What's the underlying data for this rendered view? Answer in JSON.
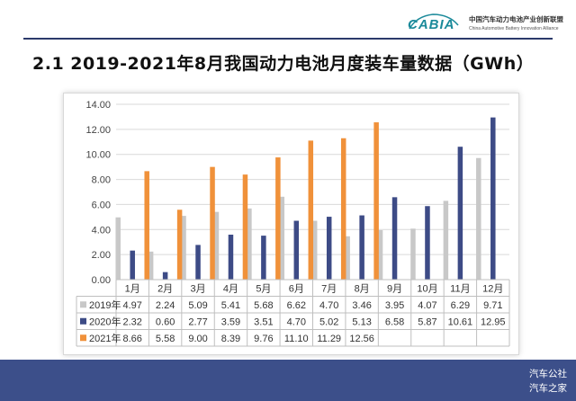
{
  "header": {
    "logo_text": "CABIA",
    "org_cn": "中国汽车动力电池产业创新联盟",
    "org_en": "China Automotive Battery Innovation Alliance"
  },
  "title": "2.1 2019-2021年8月我国动力电池月度装车量数据（GWh）",
  "watermark": {
    "line1": "汽车公社",
    "line2": "汽车之家"
  },
  "colors": {
    "footer": "#3c4f8a",
    "series": [
      "#c8c8c8",
      "#3d4b86",
      "#f0913a"
    ]
  },
  "chart_data": {
    "type": "bar",
    "categories": [
      "1月",
      "2月",
      "3月",
      "4月",
      "5月",
      "6月",
      "7月",
      "8月",
      "9月",
      "10月",
      "11月",
      "12月"
    ],
    "series": [
      {
        "name": "2019年",
        "values": [
          4.97,
          2.24,
          5.09,
          5.41,
          5.68,
          6.62,
          4.7,
          3.46,
          3.95,
          4.07,
          6.29,
          9.71
        ],
        "labels": [
          "4.97",
          "2.24",
          "5.09",
          "5.41",
          "5.68",
          "6.62",
          "4.70",
          "3.46",
          "3.95",
          "4.07",
          "6.29",
          "9.71"
        ]
      },
      {
        "name": "2020年",
        "values": [
          2.32,
          0.6,
          2.77,
          3.59,
          3.51,
          4.7,
          5.02,
          5.13,
          6.58,
          5.87,
          10.61,
          12.95
        ],
        "labels": [
          "2.32",
          "0.60",
          "2.77",
          "3.59",
          "3.51",
          "4.70",
          "5.02",
          "5.13",
          "6.58",
          "5.87",
          "10.61",
          "12.95"
        ]
      },
      {
        "name": "2021年",
        "values": [
          8.66,
          5.58,
          9.0,
          8.39,
          9.76,
          11.1,
          11.29,
          12.56,
          null,
          null,
          null,
          null
        ],
        "labels": [
          "8.66",
          "5.58",
          "9.00",
          "8.39",
          "9.76",
          "11.10",
          "11.29",
          "12.56",
          "",
          "",
          "",
          ""
        ]
      }
    ],
    "ylim": [
      0,
      14
    ],
    "yticks": [
      "0.00",
      "2.00",
      "4.00",
      "6.00",
      "8.00",
      "10.00",
      "12.00",
      "14.00"
    ],
    "grid": true,
    "legend": "data-table-below",
    "xlabel": "",
    "ylabel": ""
  }
}
